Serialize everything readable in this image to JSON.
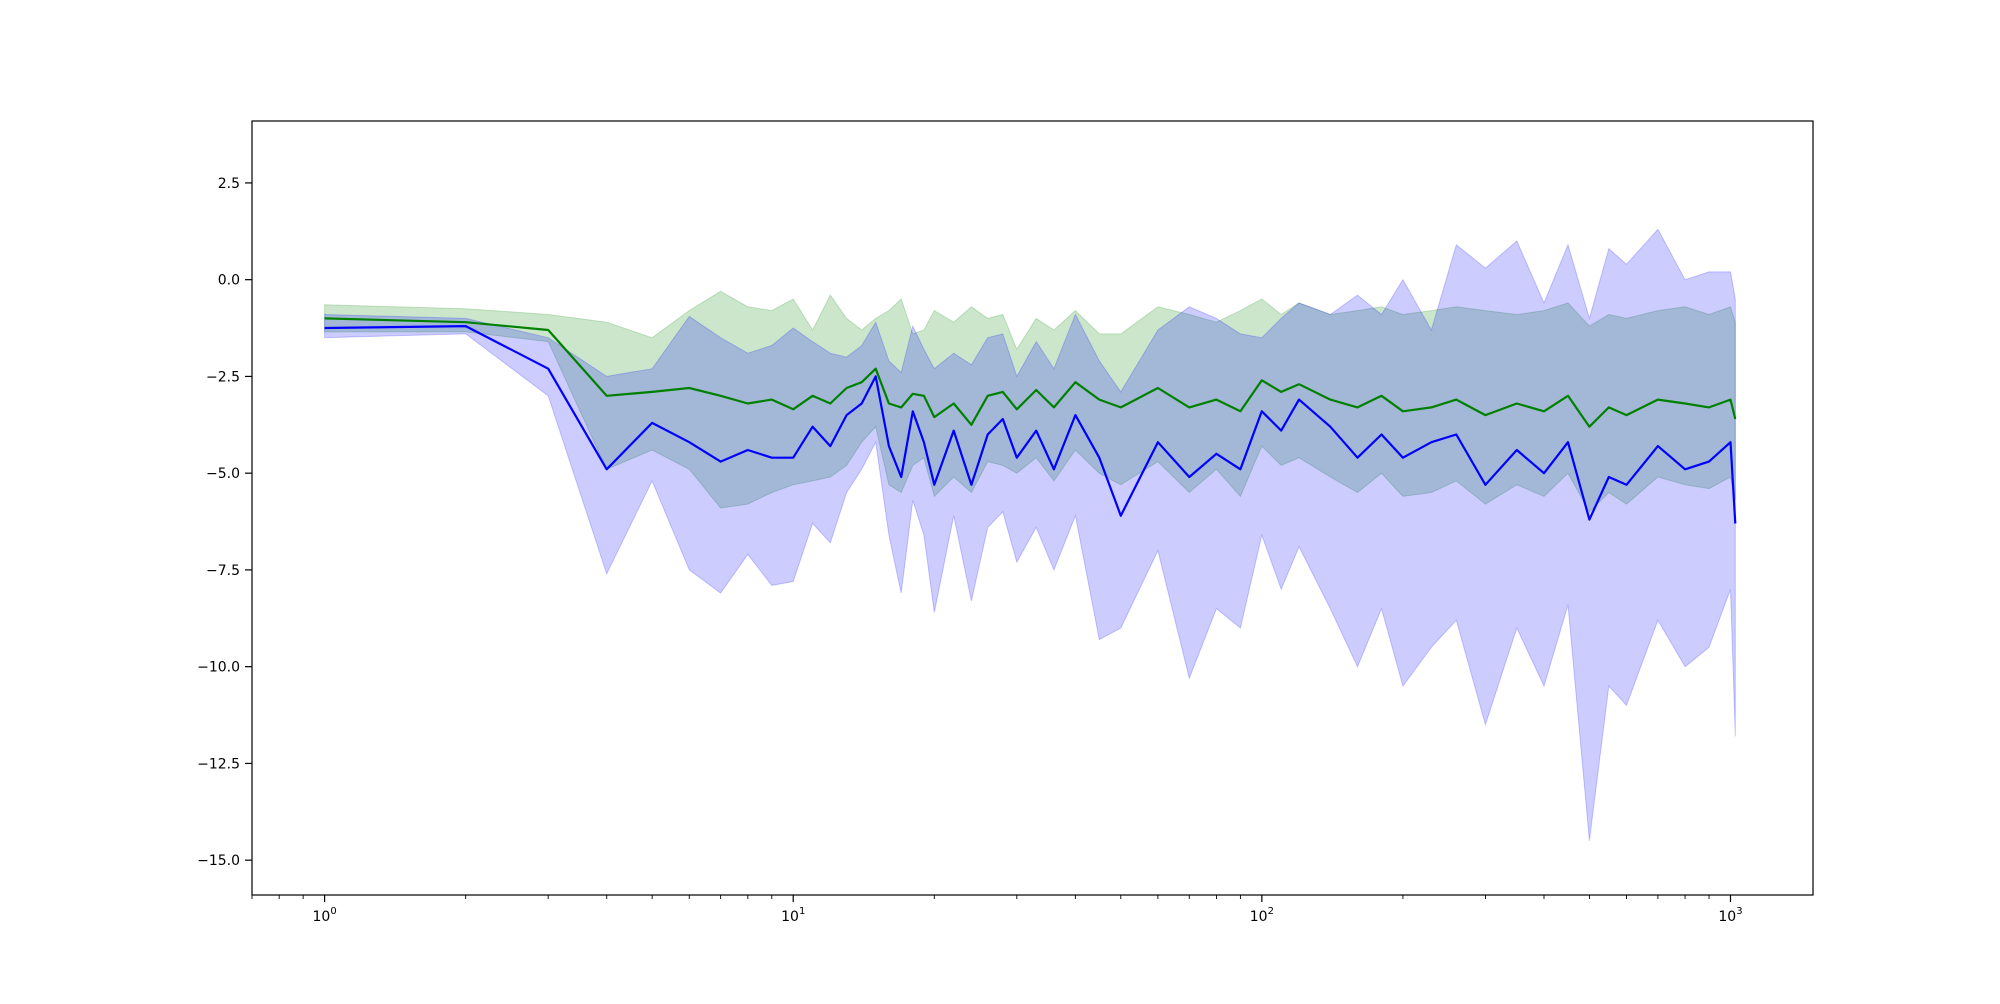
{
  "chart_data": {
    "type": "line",
    "title": "",
    "xlabel": "",
    "ylabel": "",
    "xscale": "log",
    "xlim": [
      0.7,
      1500
    ],
    "ylim": [
      -15.9,
      4.1
    ],
    "grid": false,
    "legend": "none",
    "x_ticks": [
      {
        "value": 1,
        "base": "10",
        "exp": "0"
      },
      {
        "value": 10,
        "base": "10",
        "exp": "1"
      },
      {
        "value": 100,
        "base": "10",
        "exp": "2"
      },
      {
        "value": 1000,
        "base": "10",
        "exp": "3"
      }
    ],
    "y_ticks": [
      {
        "value": 2.5,
        "label": "2.5"
      },
      {
        "value": 0.0,
        "label": "0.0"
      },
      {
        "value": -2.5,
        "label": "−2.5"
      },
      {
        "value": -5.0,
        "label": "−5.0"
      },
      {
        "value": -7.5,
        "label": "−7.5"
      },
      {
        "value": -10.0,
        "label": "−10.0"
      },
      {
        "value": -12.5,
        "label": "−12.5"
      },
      {
        "value": -15.0,
        "label": "−15.0"
      }
    ],
    "series": [
      {
        "color": "#008000",
        "band_color": "#008000",
        "band_opacity": 0.2,
        "x": [
          1,
          2,
          3,
          4,
          5,
          6,
          7,
          8,
          9,
          10,
          11,
          12,
          13,
          14,
          15,
          16,
          17,
          18,
          19,
          20,
          22,
          24,
          26,
          28,
          30,
          33,
          36,
          40,
          45,
          50,
          60,
          70,
          80,
          90,
          100,
          110,
          120,
          140,
          160,
          180,
          200,
          230,
          260,
          300,
          350,
          400,
          450,
          500,
          550,
          600,
          700,
          800,
          900,
          1000,
          1024
        ],
        "y": [
          -1.0,
          -1.1,
          -1.3,
          -3.0,
          -2.9,
          -2.8,
          -3.0,
          -3.2,
          -3.1,
          -3.35,
          -3.0,
          -3.2,
          -2.8,
          -2.65,
          -2.3,
          -3.2,
          -3.3,
          -2.95,
          -3.0,
          -3.55,
          -3.2,
          -3.75,
          -3.0,
          -2.9,
          -3.35,
          -2.85,
          -3.3,
          -2.65,
          -3.1,
          -3.3,
          -2.8,
          -3.3,
          -3.1,
          -3.4,
          -2.6,
          -2.9,
          -2.7,
          -3.1,
          -3.3,
          -3.0,
          -3.4,
          -3.3,
          -3.1,
          -3.5,
          -3.2,
          -3.4,
          -3.0,
          -3.8,
          -3.3,
          -3.5,
          -3.1,
          -3.2,
          -3.3,
          -3.1,
          -3.6
        ],
        "lower": [
          -1.35,
          -1.35,
          -1.6,
          -4.9,
          -4.4,
          -4.9,
          -5.9,
          -5.8,
          -5.5,
          -5.3,
          -5.2,
          -5.1,
          -4.8,
          -4.2,
          -3.8,
          -5.3,
          -5.5,
          -4.8,
          -4.6,
          -5.6,
          -5.1,
          -5.5,
          -4.7,
          -4.8,
          -5.0,
          -4.6,
          -5.2,
          -4.4,
          -5.0,
          -5.3,
          -4.7,
          -5.5,
          -4.9,
          -5.6,
          -4.3,
          -4.8,
          -4.6,
          -5.1,
          -5.5,
          -5.0,
          -5.6,
          -5.5,
          -5.2,
          -5.8,
          -5.3,
          -5.6,
          -5.0,
          -6.0,
          -5.5,
          -5.8,
          -5.1,
          -5.3,
          -5.4,
          -5.1,
          -5.7
        ],
        "upper": [
          -0.65,
          -0.75,
          -0.9,
          -1.1,
          -1.5,
          -0.8,
          -0.3,
          -0.7,
          -0.8,
          -0.5,
          -1.3,
          -0.4,
          -1.0,
          -1.3,
          -1.0,
          -0.8,
          -0.5,
          -1.4,
          -1.3,
          -0.8,
          -1.1,
          -0.7,
          -1.0,
          -0.9,
          -1.8,
          -1.0,
          -1.3,
          -0.8,
          -1.4,
          -1.4,
          -0.7,
          -0.9,
          -1.1,
          -0.8,
          -0.5,
          -0.9,
          -0.6,
          -0.9,
          -0.8,
          -0.7,
          -0.9,
          -0.8,
          -0.7,
          -0.8,
          -0.9,
          -0.8,
          -0.6,
          -1.2,
          -0.9,
          -1.0,
          -0.8,
          -0.7,
          -0.9,
          -0.7,
          -1.1
        ]
      },
      {
        "color": "#0000ff",
        "band_color": "#0000ff",
        "band_opacity": 0.2,
        "x": [
          1,
          2,
          3,
          4,
          5,
          6,
          7,
          8,
          9,
          10,
          11,
          12,
          13,
          14,
          15,
          16,
          17,
          18,
          19,
          20,
          22,
          24,
          26,
          28,
          30,
          33,
          36,
          40,
          45,
          50,
          60,
          70,
          80,
          90,
          100,
          110,
          120,
          140,
          160,
          180,
          200,
          230,
          260,
          300,
          350,
          400,
          450,
          500,
          550,
          600,
          700,
          800,
          900,
          1000,
          1024
        ],
        "y": [
          -1.25,
          -1.2,
          -2.3,
          -4.9,
          -3.7,
          -4.2,
          -4.7,
          -4.4,
          -4.6,
          -4.6,
          -3.8,
          -4.3,
          -3.5,
          -3.2,
          -2.5,
          -4.3,
          -5.1,
          -3.4,
          -4.2,
          -5.3,
          -3.9,
          -5.3,
          -4.0,
          -3.6,
          -4.6,
          -3.9,
          -4.9,
          -3.5,
          -4.6,
          -6.1,
          -4.2,
          -5.1,
          -4.5,
          -4.9,
          -3.4,
          -3.9,
          -3.1,
          -3.8,
          -4.6,
          -4.0,
          -4.6,
          -4.2,
          -4.0,
          -5.3,
          -4.4,
          -5.0,
          -4.2,
          -6.2,
          -5.1,
          -5.3,
          -4.3,
          -4.9,
          -4.7,
          -4.2,
          -6.3
        ],
        "lower": [
          -1.5,
          -1.4,
          -3.0,
          -7.6,
          -5.2,
          -7.5,
          -8.1,
          -7.1,
          -7.9,
          -7.8,
          -6.3,
          -6.8,
          -5.5,
          -4.9,
          -4.2,
          -6.6,
          -8.1,
          -5.7,
          -6.6,
          -8.6,
          -6.1,
          -8.3,
          -6.4,
          -6.0,
          -7.3,
          -6.4,
          -7.5,
          -6.1,
          -9.3,
          -9.0,
          -7.0,
          -10.3,
          -8.5,
          -9.0,
          -6.6,
          -8.0,
          -6.9,
          -8.5,
          -10.0,
          -8.5,
          -10.5,
          -9.5,
          -8.8,
          -11.5,
          -9.0,
          -10.5,
          -8.4,
          -14.5,
          -10.5,
          -11.0,
          -8.8,
          -10.0,
          -9.5,
          -8.0,
          -11.8
        ],
        "upper": [
          -0.9,
          -1.0,
          -1.5,
          -2.5,
          -2.3,
          -0.95,
          -1.5,
          -1.9,
          -1.7,
          -1.25,
          -1.6,
          -1.9,
          -2.0,
          -1.7,
          -1.1,
          -2.1,
          -2.4,
          -1.2,
          -1.8,
          -2.3,
          -1.9,
          -2.2,
          -1.5,
          -1.4,
          -2.5,
          -1.6,
          -2.3,
          -0.9,
          -2.1,
          -2.9,
          -1.3,
          -0.7,
          -1.0,
          -1.4,
          -1.5,
          -1.0,
          -0.6,
          -0.9,
          -0.4,
          -0.9,
          0.0,
          -1.3,
          0.9,
          0.3,
          1.0,
          -0.6,
          0.9,
          -1.0,
          0.8,
          0.4,
          1.3,
          0.0,
          0.2,
          0.2,
          -0.5
        ]
      }
    ]
  }
}
